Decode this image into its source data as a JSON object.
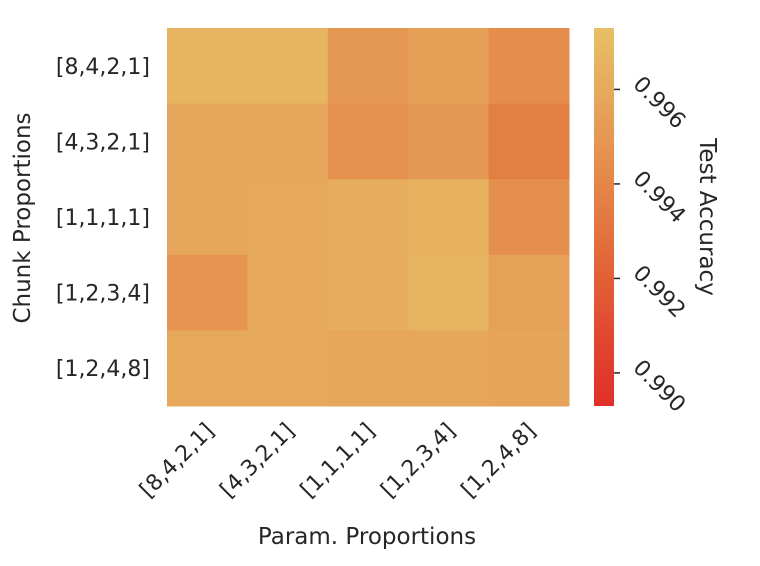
{
  "chart_data": {
    "type": "heatmap",
    "title": "",
    "xlabel": "Param. Proportions",
    "ylabel": "Chunk Proportions",
    "x_categories": [
      "[8,4,2,1]",
      "[4,3,2,1]",
      "[1,1,1,1]",
      "[1,2,3,4]",
      "[1,2,4,8]"
    ],
    "y_categories": [
      "[8,4,2,1]",
      "[4,3,2,1]",
      "[1,1,1,1]",
      "[1,2,3,4]",
      "[1,2,4,8]"
    ],
    "values": [
      [
        0.9966,
        0.9966,
        0.995,
        0.9954,
        0.9944
      ],
      [
        0.9958,
        0.9958,
        0.9946,
        0.995,
        0.9936
      ],
      [
        0.9958,
        0.996,
        0.9962,
        0.9965,
        0.9945
      ],
      [
        0.9948,
        0.996,
        0.9962,
        0.9966,
        0.9955
      ],
      [
        0.996,
        0.996,
        0.9958,
        0.9958,
        0.9957
      ]
    ],
    "colorbar": {
      "label": "Test Accuracy",
      "range": [
        0.9893,
        0.9973
      ],
      "ticks": [
        0.99,
        0.992,
        0.994,
        0.996
      ],
      "tick_labels": [
        "0.990",
        "0.992",
        "0.994",
        "0.996"
      ],
      "color_low": "#e0302a",
      "color_high": "#e8c066"
    }
  }
}
